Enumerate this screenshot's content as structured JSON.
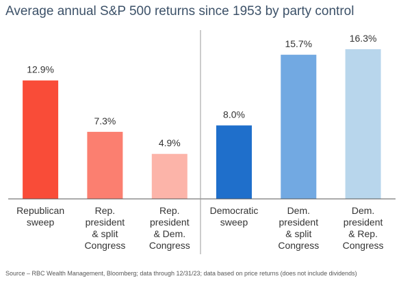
{
  "chart_data": {
    "type": "bar",
    "title": "Average annual S&P 500 returns since 1953 by party control",
    "categories": [
      [
        "Republican",
        "sweep"
      ],
      [
        "Rep.",
        "president",
        "& split",
        "Congress"
      ],
      [
        "Rep.",
        "president",
        "& Dem.",
        "Congress"
      ],
      [
        "Democratic",
        "sweep"
      ],
      [
        "Dem.",
        "president",
        "& split",
        "Congress"
      ],
      [
        "Dem.",
        "president",
        "& Rep.",
        "Congress"
      ]
    ],
    "values": [
      12.9,
      7.3,
      4.9,
      8.0,
      15.7,
      16.3
    ],
    "data_labels": [
      "12.9%",
      "7.3%",
      "4.9%",
      "8.0%",
      "15.7%",
      "16.3%"
    ],
    "colors": [
      "#f94c38",
      "#fb7f70",
      "#fcb4a9",
      "#1f6fcb",
      "#72a9e2",
      "#b8d6ec"
    ],
    "ylim": [
      0,
      16.3
    ],
    "xlabel": "",
    "ylabel": "",
    "grid": false,
    "legend": "none"
  },
  "source": "Source – RBC Wealth Management, Bloomberg; data through 12/31/23; data based on price returns (does not include dividends)"
}
